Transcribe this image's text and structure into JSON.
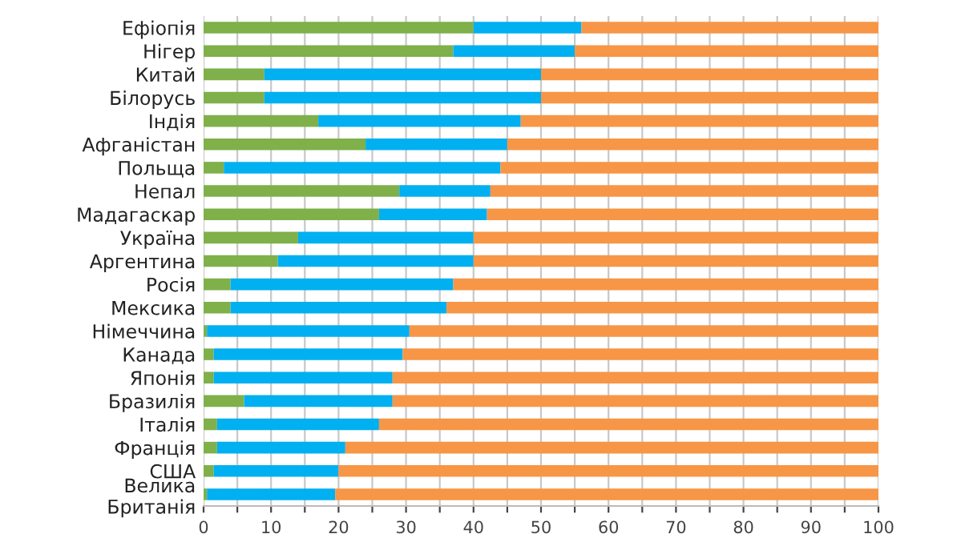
{
  "chart_data": {
    "type": "bar",
    "orientation": "horizontal",
    "stacked": true,
    "categories": [
      "Ефіопія",
      "Нігер",
      "Китай",
      "Білорусь",
      "Індія",
      "Афганістан",
      "Польща",
      "Непал",
      "Мадагаскар",
      "Україна",
      "Аргентина",
      "Росія",
      "Мексика",
      "Німеччина",
      "Канада",
      "Японія",
      "Бразилія",
      "Італія",
      "Франція",
      "США",
      "Велика\nБританія"
    ],
    "series": [
      {
        "color": "#7fb04a",
        "values": [
          40,
          37,
          9,
          9,
          17,
          24,
          3,
          29,
          26,
          14,
          11,
          4,
          4,
          0.5,
          1.5,
          1.5,
          6,
          2,
          2,
          1.5,
          0.5
        ]
      },
      {
        "color": "#00b0f0",
        "values": [
          16,
          18,
          41,
          41,
          30,
          21,
          41,
          13.5,
          16,
          26,
          29,
          33,
          32,
          30,
          28,
          26.5,
          22,
          24,
          19,
          18.5,
          19
        ]
      },
      {
        "color": "#f79646",
        "values": [
          44,
          45,
          50,
          50,
          53,
          55,
          56,
          57.5,
          58,
          60,
          60,
          63,
          64,
          69.5,
          70.5,
          72,
          72,
          74,
          79,
          80,
          80.5
        ]
      }
    ],
    "xlim": [
      0,
      100
    ],
    "xticks": [
      0,
      {
        "value": 5,
        "label": null
      },
      10,
      {
        "value": 15,
        "label": null
      },
      20,
      {
        "value": 25,
        "label": null
      },
      30,
      {
        "value": 35,
        "label": null
      },
      40,
      {
        "value": 45,
        "label": null
      },
      50,
      {
        "value": 55,
        "label": null
      },
      60,
      {
        "value": 65,
        "label": null
      },
      70,
      {
        "value": 75,
        "label": null
      },
      80,
      {
        "value": 85,
        "label": null
      },
      90,
      {
        "value": 95,
        "label": null
      },
      100
    ],
    "grid": "x"
  }
}
